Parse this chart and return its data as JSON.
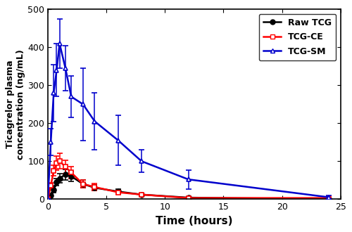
{
  "xlabel": "Time (hours)",
  "ylabel": "Ticagrelor plasma\nconcentration (ng/mL)",
  "xlim": [
    0,
    25
  ],
  "ylim": [
    0,
    500
  ],
  "yticks": [
    0,
    100,
    200,
    300,
    400,
    500
  ],
  "xticks": [
    0,
    5,
    10,
    15,
    20,
    25
  ],
  "raw_tcg": {
    "x": [
      0,
      0.25,
      0.5,
      0.75,
      1.0,
      1.5,
      2.0,
      3.0,
      4.0,
      6.0,
      8.0,
      12.0,
      24.0
    ],
    "y": [
      0,
      10,
      25,
      45,
      55,
      65,
      60,
      40,
      30,
      20,
      12,
      4,
      0
    ],
    "yerr": [
      0,
      4,
      8,
      10,
      12,
      14,
      13,
      10,
      8,
      6,
      4,
      2,
      0
    ],
    "color": "#000000",
    "marker": "o",
    "label": "Raw TCG"
  },
  "tcg_ce": {
    "x": [
      0,
      0.25,
      0.5,
      0.75,
      1.0,
      1.5,
      2.0,
      3.0,
      4.0,
      6.0,
      8.0,
      12.0,
      24.0
    ],
    "y": [
      0,
      35,
      75,
      95,
      100,
      85,
      70,
      40,
      32,
      18,
      12,
      3,
      3
    ],
    "yerr": [
      0,
      8,
      14,
      18,
      20,
      17,
      15,
      10,
      9,
      5,
      4,
      2,
      2
    ],
    "color": "#ff0000",
    "marker": "s",
    "label": "TCG-CE"
  },
  "tcg_sm": {
    "x": [
      0,
      0.25,
      0.5,
      0.75,
      1.0,
      1.5,
      2.0,
      3.0,
      4.0,
      6.0,
      8.0,
      12.0,
      24.0
    ],
    "y": [
      0,
      150,
      280,
      340,
      410,
      345,
      270,
      250,
      205,
      155,
      100,
      52,
      5
    ],
    "yerr": [
      0,
      35,
      75,
      70,
      65,
      60,
      55,
      95,
      75,
      65,
      30,
      25,
      4
    ],
    "color": "#0000cc",
    "marker": "^",
    "label": "TCG-SM"
  },
  "legend_loc": "upper right",
  "bg_color": "#ffffff",
  "linewidth": 1.8,
  "markersize": 5,
  "capsize": 3
}
